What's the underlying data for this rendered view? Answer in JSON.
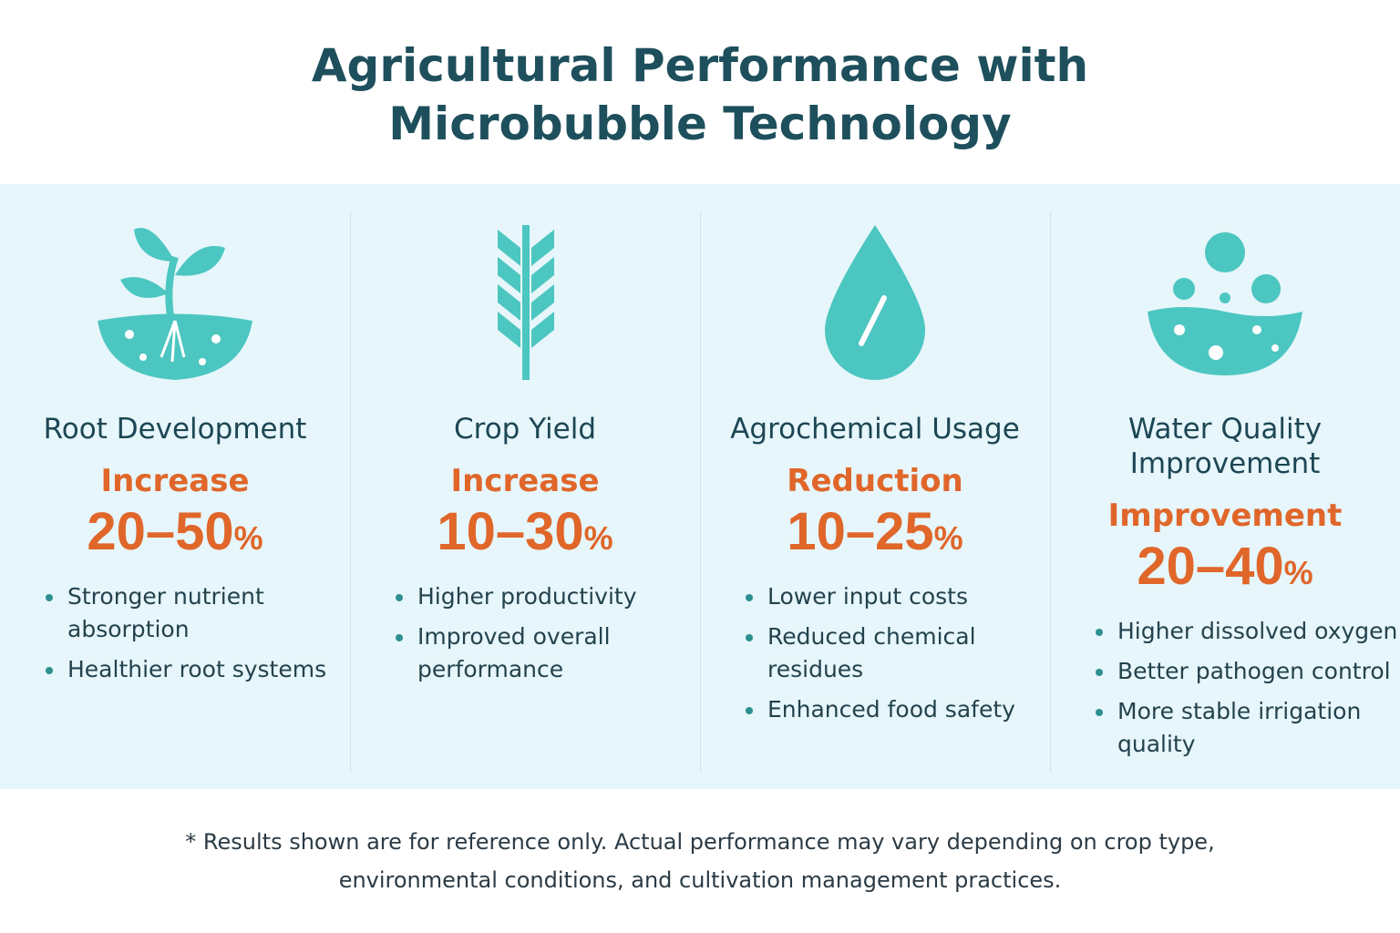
{
  "header": {
    "title_lines": [
      "Agricultural Performance with",
      "Microbubble Technology"
    ]
  },
  "cards": [
    {
      "title_lines": [
        "Root Development"
      ],
      "direction": "Increase",
      "range": "20–50",
      "unit": "%",
      "bullets": [
        "Stronger nutrient absorption",
        "Healthier root systems"
      ]
    },
    {
      "title_lines": [
        "Crop Yield"
      ],
      "direction": "Increase",
      "range": "10–30",
      "unit": "%",
      "bullets": [
        "Higher productivity",
        "Improved overall performance"
      ]
    },
    {
      "title_lines": [
        "Agrochemical Usage"
      ],
      "direction": "Reduction",
      "range": "10–25",
      "unit": "%",
      "bullets": [
        "Lower input costs",
        "Reduced chemical residues",
        "Enhanced food safety"
      ]
    },
    {
      "title_lines": [
        "Water Quality",
        "Improvement"
      ],
      "direction": "Improvement",
      "range": "20–40",
      "unit": "%",
      "bullets": [
        "Higher dissolved oxygen",
        "Better pathogen control",
        "More stable irrigation quality"
      ]
    }
  ],
  "footnote": {
    "lines": [
      "* Results shown are for reference only. Actual performance may vary depending on crop type,",
      "environmental conditions, and cultivation management practices."
    ]
  }
}
